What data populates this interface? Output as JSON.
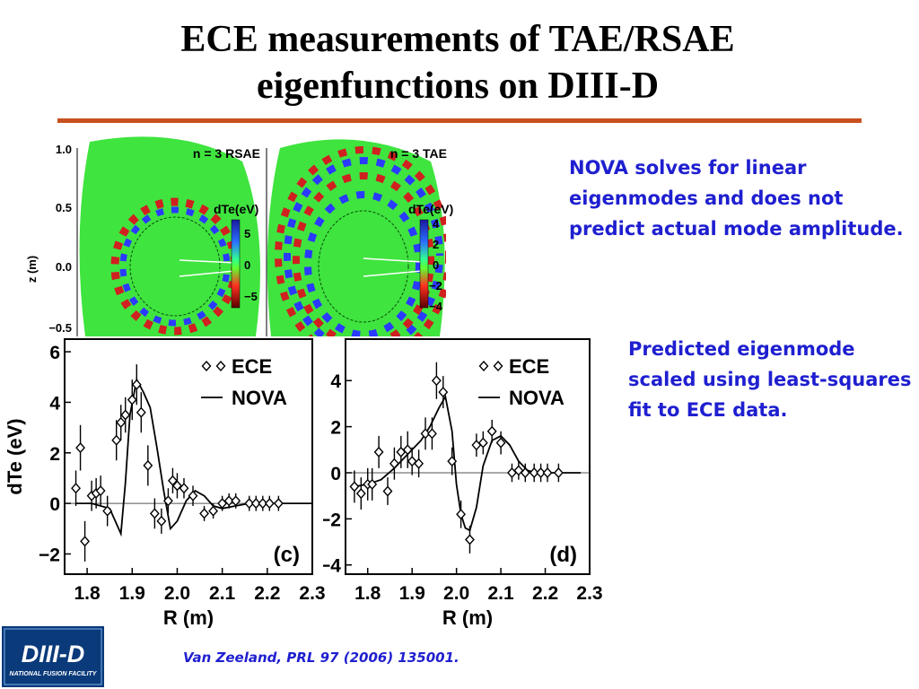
{
  "slide": {
    "title_line1": "ECE measurements of TAE/RSAE",
    "title_line2": "eigenfunctions on DIII-D",
    "note1": "NOVA solves for linear eigenmodes and does not predict actual mode amplitude.",
    "note2": "Predicted eigenmode scaled using least-squares fit to ECE data.",
    "citation": "Van Zeeland, PRL 97 (2006) 135001.",
    "accent_color": "#c8501e",
    "text_color": "#1f1fd0"
  },
  "logo": {
    "text": "DIII-D",
    "subtext": "NATIONAL FUSION FACILITY",
    "color": "#0a3a7a"
  },
  "contour_panels": {
    "ylabel": "z (m)",
    "yticks": [
      "1.0",
      "0.5",
      "0.0",
      "−0.5"
    ],
    "rsae": {
      "title": "n = 3 RSAE",
      "colorbar_label": "dTe(eV)",
      "colorbar_ticks": [
        "5",
        "0",
        "−5"
      ]
    },
    "tae": {
      "title": "n = 3 TAE",
      "colorbar_label": "dTe(eV)",
      "colorbar_ticks": [
        "4",
        "2",
        "0",
        "−2",
        "−4"
      ]
    }
  },
  "chart_data": [
    {
      "type": "scatter",
      "panel_label": "(c)",
      "xlabel": "R (m)",
      "ylabel": "dTe (eV)",
      "xlim": [
        1.75,
        2.3
      ],
      "ylim": [
        -2.8,
        6.5
      ],
      "xticks": [
        1.8,
        1.9,
        2.0,
        2.1,
        2.2,
        2.3
      ],
      "xtick_labels": [
        "1.8",
        "1.9",
        "2.0",
        "2.1",
        "2.2",
        "2.3"
      ],
      "yticks": [
        -2,
        0,
        2,
        4,
        6
      ],
      "ytick_labels": [
        "−2",
        "0",
        "2",
        "4",
        "6"
      ],
      "legend": {
        "placement": "top-right",
        "entries": [
          "ECE",
          "NOVA"
        ]
      },
      "series": [
        {
          "name": "ECE",
          "kind": "points",
          "x": [
            1.775,
            1.785,
            1.795,
            1.81,
            1.82,
            1.83,
            1.845,
            1.865,
            1.875,
            1.885,
            1.9,
            1.91,
            1.92,
            1.935,
            1.95,
            1.965,
            1.98,
            1.99,
            2.0,
            2.015,
            2.035,
            2.06,
            2.08,
            2.1,
            2.115,
            2.13,
            2.16,
            2.175,
            2.19,
            2.205,
            2.225
          ],
          "y": [
            0.6,
            2.2,
            -1.5,
            0.3,
            0.4,
            0.5,
            -0.3,
            2.5,
            3.2,
            3.5,
            4.1,
            4.7,
            3.6,
            1.5,
            -0.4,
            -0.7,
            0.1,
            0.9,
            0.7,
            0.6,
            0.3,
            -0.4,
            -0.3,
            0.0,
            0.1,
            0.1,
            0.0,
            0.0,
            0.0,
            0.0,
            0.0
          ],
          "err": [
            0.7,
            0.9,
            0.8,
            0.6,
            0.6,
            0.6,
            0.6,
            0.8,
            0.7,
            0.7,
            0.8,
            0.8,
            0.8,
            0.8,
            0.6,
            0.5,
            0.5,
            0.5,
            0.5,
            0.4,
            0.4,
            0.3,
            0.3,
            0.3,
            0.3,
            0.3,
            0.3,
            0.3,
            0.3,
            0.3,
            0.3
          ]
        },
        {
          "name": "NOVA",
          "kind": "line",
          "x": [
            1.775,
            1.81,
            1.85,
            1.875,
            1.885,
            1.895,
            1.91,
            1.925,
            1.94,
            1.955,
            1.97,
            1.985,
            2.0,
            2.02,
            2.04,
            2.06,
            2.08,
            2.1,
            2.13,
            2.16,
            2.19,
            2.22,
            2.25,
            2.3
          ],
          "y": [
            0.0,
            0.0,
            -0.2,
            -1.2,
            0.8,
            3.5,
            4.9,
            4.4,
            3.8,
            2.2,
            0.5,
            -1.0,
            -0.7,
            0.1,
            0.5,
            0.3,
            -0.1,
            -0.2,
            -0.1,
            0.0,
            0.0,
            0.0,
            0.0,
            0.0
          ]
        }
      ]
    },
    {
      "type": "scatter",
      "panel_label": "(d)",
      "xlabel": "R (m)",
      "ylabel": "",
      "xlim": [
        1.75,
        2.3
      ],
      "ylim": [
        -4.4,
        5.8
      ],
      "xticks": [
        1.8,
        1.9,
        2.0,
        2.1,
        2.2,
        2.3
      ],
      "xtick_labels": [
        "1.8",
        "1.9",
        "2.0",
        "2.1",
        "2.2",
        "2.3"
      ],
      "yticks": [
        -4,
        -2,
        0,
        2,
        4
      ],
      "ytick_labels": [
        "−4",
        "−2",
        "0",
        "2",
        "4"
      ],
      "legend": {
        "placement": "top-right",
        "entries": [
          "ECE",
          "NOVA"
        ]
      },
      "series": [
        {
          "name": "ECE",
          "kind": "points",
          "x": [
            1.77,
            1.785,
            1.8,
            1.81,
            1.825,
            1.845,
            1.86,
            1.875,
            1.89,
            1.9,
            1.915,
            1.93,
            1.945,
            1.955,
            1.97,
            1.99,
            2.01,
            2.03,
            2.045,
            2.06,
            2.08,
            2.1,
            2.125,
            2.14,
            2.155,
            2.175,
            2.19,
            2.205,
            2.23
          ],
          "y": [
            -0.6,
            -0.9,
            -0.5,
            -0.5,
            0.9,
            -0.8,
            0.4,
            0.9,
            1.0,
            0.5,
            0.4,
            1.7,
            1.7,
            4.0,
            3.5,
            0.5,
            -1.8,
            -2.9,
            1.2,
            1.3,
            1.8,
            1.3,
            0.0,
            0.1,
            0.0,
            0.0,
            0.0,
            0.0,
            0.0
          ],
          "err": [
            0.7,
            0.7,
            0.7,
            0.7,
            0.7,
            0.6,
            0.7,
            0.7,
            0.8,
            0.6,
            0.6,
            0.7,
            0.7,
            0.8,
            0.7,
            0.6,
            0.6,
            0.6,
            0.5,
            0.5,
            0.5,
            0.5,
            0.4,
            0.4,
            0.4,
            0.4,
            0.4,
            0.4,
            0.4
          ]
        },
        {
          "name": "NOVA",
          "kind": "line",
          "x": [
            1.77,
            1.8,
            1.83,
            1.86,
            1.89,
            1.92,
            1.94,
            1.96,
            1.975,
            1.99,
            2.0,
            2.01,
            2.02,
            2.03,
            2.045,
            2.06,
            2.08,
            2.1,
            2.12,
            2.14,
            2.16,
            2.18,
            2.2,
            2.22,
            2.25,
            2.28
          ],
          "y": [
            -0.6,
            -0.5,
            -0.3,
            0.2,
            0.8,
            1.4,
            2.0,
            2.8,
            3.3,
            1.8,
            -0.5,
            -1.8,
            -2.4,
            -2.5,
            -1.5,
            0.3,
            1.4,
            1.6,
            1.2,
            0.5,
            0.1,
            0.0,
            0.0,
            0.0,
            0.0,
            0.0
          ]
        }
      ]
    }
  ]
}
